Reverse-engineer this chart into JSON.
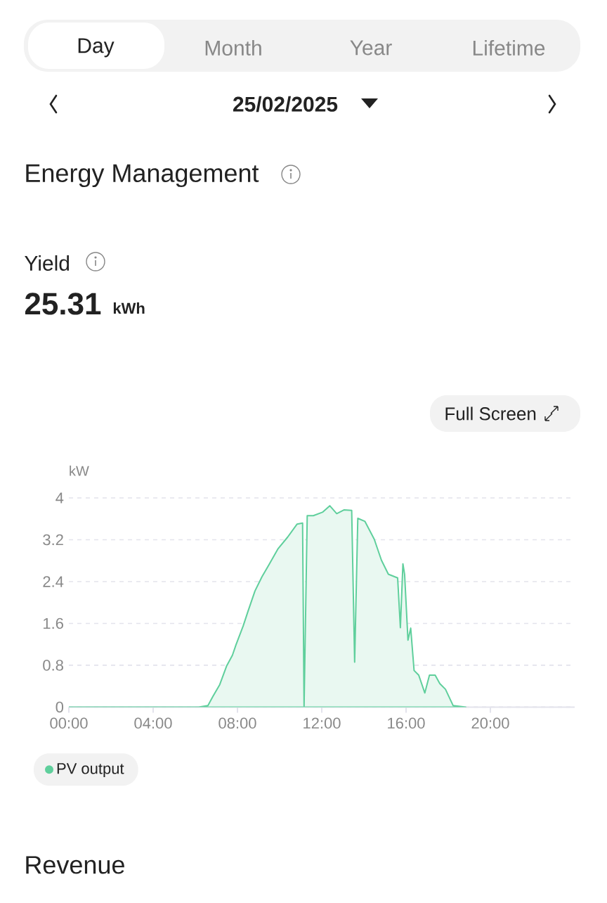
{
  "chart_data": {
    "type": "area",
    "title": "Energy Management",
    "ylabel": "kW",
    "annotations": [
      "Day",
      "Month",
      "Year",
      "Lifetime",
      "25/02/2025",
      "Yield",
      "25.31",
      "kWh",
      "Full Screen",
      "Revenue"
    ],
    "series": [
      {
        "name": "PV output",
        "color": "#5fcf9c",
        "x": [
          0,
          6.16,
          6.6,
          6.83,
          7.16,
          7.49,
          7.76,
          7.93,
          8.27,
          8.49,
          8.83,
          9.16,
          9.49,
          9.93,
          10.38,
          10.83,
          11.09,
          11.16,
          11.31,
          11.6,
          12.05,
          12.38,
          12.71,
          13.05,
          13.42,
          13.56,
          13.71,
          14.05,
          14.49,
          14.83,
          15.16,
          15.6,
          15.73,
          15.85,
          15.93,
          16.09,
          16.22,
          16.38,
          16.6,
          16.89,
          17.11,
          17.38,
          17.6,
          17.87,
          18.23,
          18.83
        ],
        "values": [
          0,
          0,
          0.03,
          0.2,
          0.43,
          0.79,
          0.99,
          1.19,
          1.55,
          1.82,
          2.22,
          2.49,
          2.72,
          3.03,
          3.25,
          3.5,
          3.52,
          0,
          3.66,
          3.66,
          3.73,
          3.85,
          3.7,
          3.77,
          3.76,
          0.86,
          3.61,
          3.55,
          3.21,
          2.81,
          2.54,
          2.47,
          1.52,
          2.74,
          2.54,
          1.28,
          1.51,
          0.7,
          0.61,
          0.27,
          0.61,
          0.61,
          0.45,
          0.34,
          0.03,
          0
        ]
      }
    ],
    "xlim": [
      0,
      24
    ],
    "xticks": [
      {
        "value": 0,
        "label": "00:00"
      },
      {
        "value": 4,
        "label": "04:00"
      },
      {
        "value": 8,
        "label": "08:00"
      },
      {
        "value": 12,
        "label": "12:00"
      },
      {
        "value": 16,
        "label": "16:00"
      },
      {
        "value": 20,
        "label": "20:00"
      }
    ],
    "ylim": [
      0,
      4
    ],
    "yticks": [
      0,
      0.8,
      1.6,
      2.4,
      3.2,
      4
    ],
    "grid": "y",
    "legend": "bottom left"
  }
}
